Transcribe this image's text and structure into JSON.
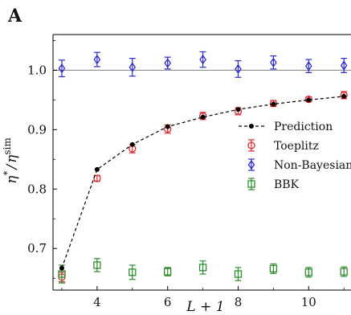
{
  "chart_data": {
    "type": "scatter",
    "panel_label": "A",
    "title": "",
    "xlabel": "L + 1",
    "ylabel": "η* / η^sim",
    "ylabel_parts": {
      "main": "η",
      "sup1": "*",
      "slash": "/",
      "main2": "η",
      "sup2": "sim"
    },
    "xlim": [
      2.75,
      11.2
    ],
    "ylim": [
      0.63,
      1.06
    ],
    "xticks": [
      4,
      6,
      8,
      10
    ],
    "yticks": [
      0.7,
      0.8,
      0.9,
      1.0
    ],
    "xtick_labels": [
      "4",
      "6",
      "8",
      "10"
    ],
    "ytick_labels": [
      "0.7",
      "0.8",
      "0.9",
      "1.0"
    ],
    "reference_line": {
      "y": 1.0,
      "color": "#808080"
    },
    "grid": false,
    "legend_position": "center-right",
    "series": [
      {
        "name": "Prediction",
        "style": "dashed-line-dot",
        "color": "#000000",
        "x": [
          3,
          4,
          5,
          6,
          7,
          8,
          9,
          10,
          11
        ],
        "y": [
          0.667,
          0.833,
          0.875,
          0.905,
          0.921,
          0.934,
          0.943,
          0.95,
          0.956
        ]
      },
      {
        "name": "Toeplitz",
        "style": "circle-errorbar",
        "color": "#e0282e",
        "x": [
          3,
          4,
          5,
          6,
          7,
          8,
          9,
          10,
          11
        ],
        "y": [
          0.652,
          0.818,
          0.868,
          0.901,
          0.923,
          0.931,
          0.944,
          0.951,
          0.958
        ],
        "err": [
          0.008,
          0.005,
          0.007,
          0.007,
          0.006,
          0.006,
          0.005,
          0.004,
          0.006
        ]
      },
      {
        "name": "Non-Bayesian",
        "style": "diamond-errorbar",
        "color": "#2a2ad0",
        "x": [
          3,
          4,
          5,
          6,
          7,
          8,
          9,
          10,
          11
        ],
        "y": [
          1.003,
          1.018,
          1.005,
          1.012,
          1.018,
          1.002,
          1.013,
          1.007,
          1.008
        ],
        "err": [
          0.014,
          0.012,
          0.015,
          0.01,
          0.013,
          0.014,
          0.011,
          0.011,
          0.012
        ]
      },
      {
        "name": "BBK",
        "style": "square-errorbar",
        "color": "#2e8b2e",
        "x": [
          3,
          4,
          5,
          6,
          7,
          8,
          9,
          10,
          11
        ],
        "y": [
          0.657,
          0.672,
          0.66,
          0.661,
          0.668,
          0.657,
          0.666,
          0.66,
          0.661
        ],
        "err": [
          0.015,
          0.011,
          0.012,
          0.007,
          0.011,
          0.011,
          0.008,
          0.008,
          0.008
        ]
      }
    ]
  }
}
